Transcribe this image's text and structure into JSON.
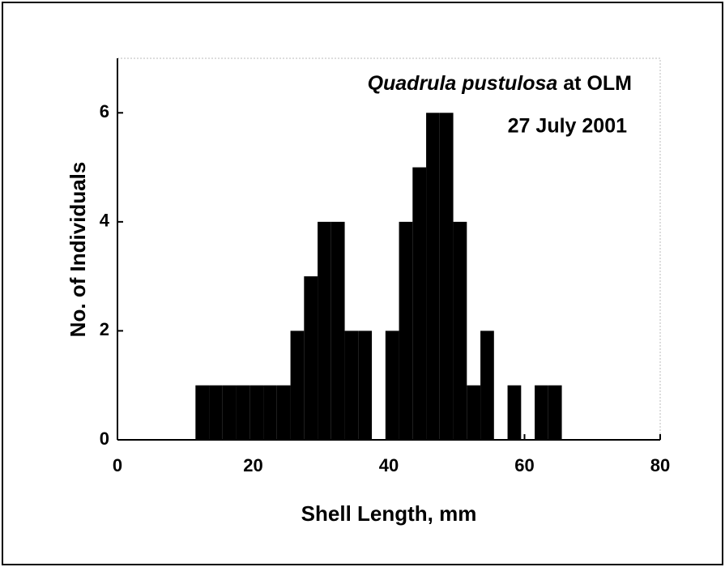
{
  "chart_data": {
    "type": "histogram",
    "xlabel": "Shell Length, mm",
    "ylabel": "No. of Individuals",
    "annotation": {
      "species": "Quadrula pustulosa",
      "location": "at OLM",
      "date": "27 July 2001"
    },
    "bins": [
      11.5,
      13.5,
      15.5,
      17.5,
      19.5,
      21.5,
      23.5,
      25.5,
      27.5,
      29.5,
      31.5,
      33.5,
      35.5,
      37.5,
      39.5,
      41.5,
      43.5,
      45.5,
      47.5,
      49.5,
      51.5,
      53.5,
      55.5,
      57.5,
      59.5,
      61.5,
      63.5,
      65.5
    ],
    "values": [
      1,
      1,
      1,
      1,
      1,
      1,
      1,
      2,
      3,
      4,
      4,
      2,
      2,
      0,
      2,
      4,
      5,
      6,
      6,
      4,
      1,
      2,
      0,
      1,
      0,
      1,
      1
    ],
    "color": "#000000",
    "xlim": [
      0,
      80
    ],
    "xticks": [
      0,
      20,
      40,
      60,
      80
    ],
    "ylim": [
      0,
      7
    ],
    "yticks": [
      0,
      2,
      4,
      6
    ]
  }
}
